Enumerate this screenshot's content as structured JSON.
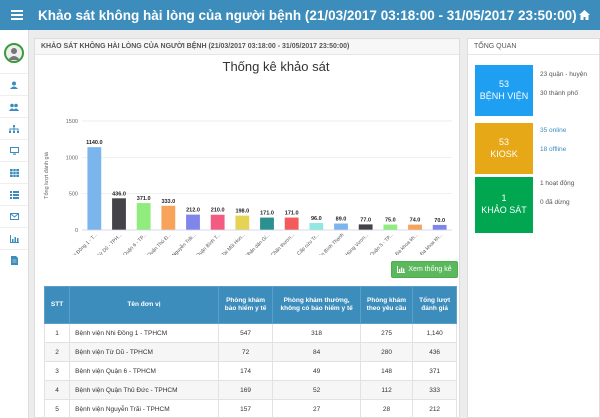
{
  "header": {
    "title": "Khảo sát không hài lòng của người bệnh (21/03/2017 03:18:00 - 31/05/2017 23:50:00)"
  },
  "main": {
    "card_title": "KHẢO SÁT KHÔNG HÀI LÒNG CỦA NGƯỜI BỆNH (21/03/2017 03:18:00 - 31/05/2017 23:50:00)",
    "button_label": "Xem thống kê"
  },
  "chart_data": {
    "type": "bar",
    "title": "Thống kê khảo sát",
    "ylabel": "Tổng lượt đánh giá",
    "ylim": [
      0,
      1500
    ],
    "yticks": [
      "0",
      "500",
      "1000",
      "1500"
    ],
    "categories": [
      "Bệnh viện Nhi Đồng 1 - T...",
      "Bệnh viện Từ Dũ - TPH...",
      "Bệnh viện Quận 6 - TP...",
      "Bệnh viện Quận Thủ Đ...",
      "Bệnh viện Nguyễn Trãi...",
      "Bệnh viện Quận Bình T...",
      "Bệnh viện Tai Mũi Hon...",
      "Bệnh viện Nhân dân Gi...",
      "Bệnh viện Chấn thươn...",
      "Bệnh viện Cấp cứu Tr...",
      "Bệnh viện Bình Thạnh",
      "Bệnh viện Hùng Vươn...",
      "Bệnh viện Quận 5 - TP...",
      "Bệnh viện Đa khoa kh...",
      "Bệnh viện Đa khoa kh..."
    ],
    "values": [
      1140,
      436,
      371,
      333,
      212,
      210,
      198,
      171,
      171,
      96,
      89,
      77,
      75,
      74,
      70
    ],
    "value_labels": [
      "1140.0",
      "436.0",
      "371.0",
      "333.0",
      "212.0",
      "210.0",
      "198.0",
      "171.0",
      "171.0",
      "96.0",
      "89.0",
      "77.0",
      "75.0",
      "74.0",
      "70.0"
    ],
    "colors": [
      "#7cb5ec",
      "#434348",
      "#90ed7d",
      "#f7a35c",
      "#8085e9",
      "#f15c80",
      "#e4d354",
      "#2b908f",
      "#f45b5b",
      "#91e8e1",
      "#7cb5ec",
      "#434348",
      "#90ed7d",
      "#f7a35c",
      "#8085e9"
    ]
  },
  "table": {
    "headers": [
      "STT",
      "Tên đơn vị",
      "Phòng khám bảo hiểm y tế",
      "Phòng khám thường, không có bảo hiểm y tế",
      "Phòng khám theo yêu cầu",
      "Tổng lượt đánh giá"
    ],
    "rows": [
      [
        "1",
        "Bệnh viện Nhi Đồng 1 - TPHCM",
        "547",
        "318",
        "275",
        "1,140"
      ],
      [
        "2",
        "Bệnh viện Từ Dũ - TPHCM",
        "72",
        "84",
        "280",
        "436"
      ],
      [
        "3",
        "Bệnh viện Quận 6 - TPHCM",
        "174",
        "49",
        "148",
        "371"
      ],
      [
        "4",
        "Bệnh viện Quận Thủ Đức - TPHCM",
        "169",
        "52",
        "112",
        "333"
      ],
      [
        "5",
        "Bệnh viện Nguyễn Trãi - TPHCM",
        "157",
        "27",
        "28",
        "212"
      ]
    ]
  },
  "overview": {
    "title": "TỔNG QUAN",
    "hospital": {
      "num": "53",
      "label": "BỆNH VIỆN",
      "info1": "23 quận - huyện",
      "info2": "30 thành phố"
    },
    "kiosk": {
      "num": "53",
      "label": "KIOSK",
      "info1": "35 online",
      "info2": "18 offline"
    },
    "survey": {
      "num": "1",
      "label": "KHẢO SÁT",
      "info1": "1 hoạt động",
      "info2": "0 đã dừng"
    },
    "colors": {
      "hospital": "#1e9ff2",
      "kiosk": "#e6a817",
      "survey": "#00a650"
    }
  }
}
